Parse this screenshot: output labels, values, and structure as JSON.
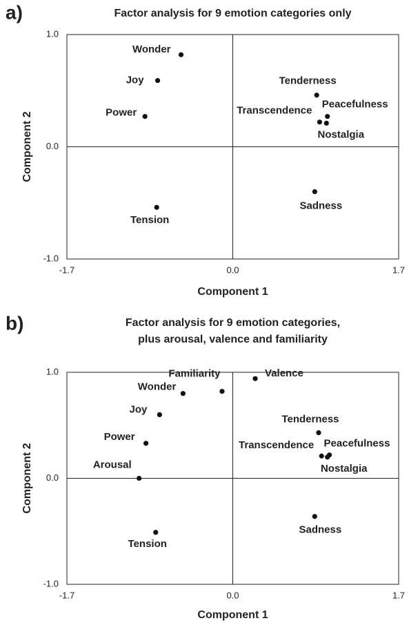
{
  "chart_data": [
    {
      "type": "scatter",
      "panel": "a)",
      "title": [
        "Factor analysis for 9 emotion categories only"
      ],
      "xlabel": "Component 1",
      "ylabel": "Component 2",
      "xlim": [
        -1.7,
        1.7
      ],
      "ylim": [
        -1.0,
        1.0
      ],
      "xticks": [
        -1.7,
        {
          "value": 0,
          "label": "0.0"
        },
        1.7
      ],
      "yticks": [
        {
          "value": -1,
          "label": "-1.0"
        },
        {
          "value": 0,
          "label": "0.0"
        },
        {
          "value": 1,
          "label": "1.0"
        }
      ],
      "color": "#111111",
      "points": [
        {
          "label": "Wonder",
          "x": -0.53,
          "y": 0.82
        },
        {
          "label": "Joy",
          "x": -0.77,
          "y": 0.59
        },
        {
          "label": "Power",
          "x": -0.9,
          "y": 0.27
        },
        {
          "label": "Tension",
          "x": -0.78,
          "y": -0.54
        },
        {
          "label": "Tenderness",
          "x": 0.86,
          "y": 0.46
        },
        {
          "label": "Peacefulness",
          "x": 0.97,
          "y": 0.27
        },
        {
          "label": "Transcendence",
          "x": 0.89,
          "y": 0.22
        },
        {
          "label": "Nostalgia",
          "x": 0.96,
          "y": 0.21
        },
        {
          "label": "Sadness",
          "x": 0.84,
          "y": -0.4
        }
      ]
    },
    {
      "type": "scatter",
      "panel": "b)",
      "title": [
        "Factor analysis for 9 emotion categories,",
        "plus arousal, valence and familiarity"
      ],
      "xlabel": "Component 1",
      "ylabel": "Component 2",
      "xlim": [
        -1.7,
        1.7
      ],
      "ylim": [
        -1.0,
        1.0
      ],
      "xticks": [
        -1.7,
        {
          "value": 0,
          "label": "0.0"
        },
        1.7
      ],
      "yticks": [
        {
          "value": -1,
          "label": "-1.0"
        },
        {
          "value": 0,
          "label": "0.0"
        },
        {
          "value": 1,
          "label": "1.0"
        }
      ],
      "color": "#111111",
      "points": [
        {
          "label": "Familiarity",
          "x": -0.11,
          "y": 0.82
        },
        {
          "label": "Valence",
          "x": 0.23,
          "y": 0.94
        },
        {
          "label": "Wonder",
          "x": -0.51,
          "y": 0.8
        },
        {
          "label": "Joy",
          "x": -0.75,
          "y": 0.6
        },
        {
          "label": "Power",
          "x": -0.89,
          "y": 0.33
        },
        {
          "label": "Arousal",
          "x": -0.96,
          "y": 0.0
        },
        {
          "label": "Tension",
          "x": -0.79,
          "y": -0.51
        },
        {
          "label": "Tenderness",
          "x": 0.88,
          "y": 0.43
        },
        {
          "label": "Peacefulness",
          "x": 0.99,
          "y": 0.22
        },
        {
          "label": "Transcendence",
          "x": 0.91,
          "y": 0.21
        },
        {
          "label": "Nostalgia",
          "x": 0.97,
          "y": 0.2
        },
        {
          "label": "Sadness",
          "x": 0.84,
          "y": -0.36
        }
      ]
    }
  ]
}
